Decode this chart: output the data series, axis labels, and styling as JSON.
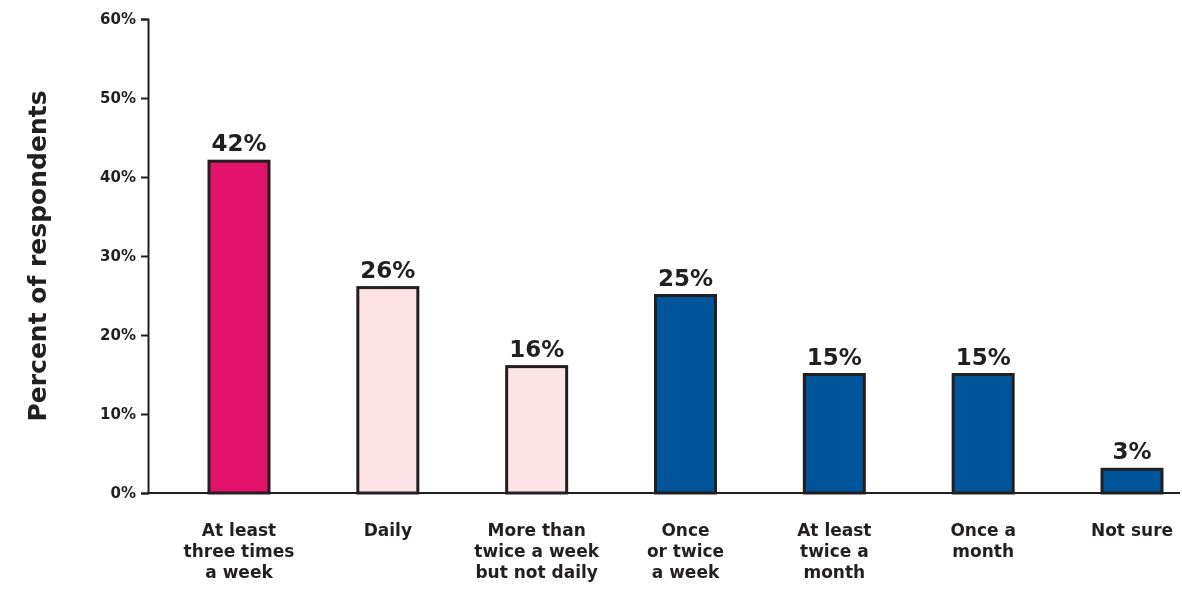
{
  "chart_data": {
    "type": "bar",
    "ylabel": "Percent of respondents",
    "categories": [
      "At least\nthree times\na week",
      "Daily",
      "More than\ntwice a week\nbut not daily",
      "Once\nor twice\na week",
      "At least\ntwice a\nmonth",
      "Once a\nmonth",
      "Not sure"
    ],
    "values": [
      42,
      26,
      16,
      25,
      15,
      15,
      3
    ],
    "colors": [
      "#e3126a",
      "#fce4e6",
      "#fce4e6",
      "#00549a",
      "#00549a",
      "#00549a",
      "#00549a"
    ],
    "value_labels": [
      "42%",
      "26%",
      "16%",
      "25%",
      "15%",
      "15%",
      "3%"
    ],
    "ylim": [
      0,
      60
    ],
    "yticks": [
      {
        "value": 0,
        "label": "0%"
      },
      {
        "value": 10,
        "label": "10%"
      },
      {
        "value": 20,
        "label": "20%"
      },
      {
        "value": 30,
        "label": "30%"
      },
      {
        "value": 40,
        "label": "40%"
      },
      {
        "value": 50,
        "label": "50%"
      },
      {
        "value": 60,
        "label": "60%"
      }
    ],
    "grid": false
  }
}
